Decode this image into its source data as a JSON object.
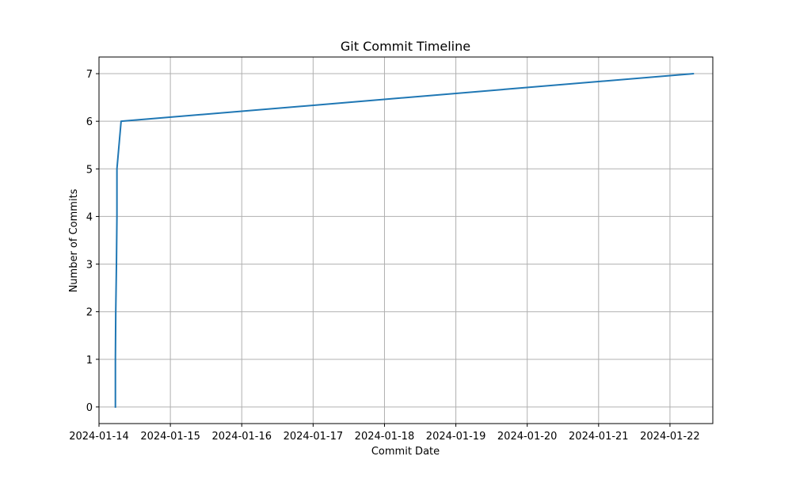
{
  "chart_data": {
    "type": "line",
    "title": "Git Commit Timeline",
    "xlabel": "Commit Date",
    "ylabel": "Number of Commits",
    "x_axis_type": "date",
    "xlim": [
      "2024-01-14T00:00",
      "2024-01-22T14:24"
    ],
    "ylim": [
      -0.35,
      7.35
    ],
    "x_ticks": [
      "2024-01-14",
      "2024-01-15",
      "2024-01-16",
      "2024-01-17",
      "2024-01-18",
      "2024-01-19",
      "2024-01-20",
      "2024-01-21",
      "2024-01-22"
    ],
    "y_ticks": [
      0,
      1,
      2,
      3,
      4,
      5,
      6,
      7
    ],
    "grid": true,
    "series": [
      {
        "color": "#1f77b4",
        "x": [
          "2024-01-14T05:31",
          "2024-01-14T05:31",
          "2024-01-14T05:38",
          "2024-01-14T05:52",
          "2024-01-14T06:02",
          "2024-01-14T06:02",
          "2024-01-14T07:26",
          "2024-01-22T07:48"
        ],
        "y": [
          0,
          1,
          2,
          3,
          4,
          5,
          6,
          7
        ]
      }
    ]
  },
  "colors": {
    "line": "#1f77b4",
    "grid": "#b0b0b0",
    "axes": "#000000"
  }
}
